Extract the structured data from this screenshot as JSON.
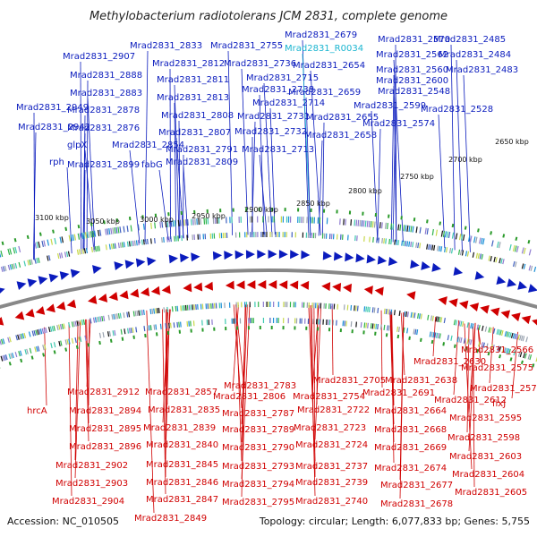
{
  "title": "Methylobacterium radiotolerans JCM 2831, complete genome",
  "accession": "Accession: NC_010505",
  "summary": "Topology: circular; Length: 6,077,833 bp; Genes: 5,755",
  "colors": {
    "forward": "#0a1bbd",
    "reverse": "#d00000",
    "rna": "#1ab5d0",
    "backbone": "#888888"
  },
  "ticks": [
    "3100 kbp",
    "3050 kbp",
    "3000 kbp",
    "2950 kbp",
    "2900 kbp",
    "2850 kbp",
    "2800 kbp",
    "2750 kbp",
    "2700 kbp",
    "2650 kbp"
  ],
  "top_labels": [
    "Mrad2831_2833",
    "Mrad2831_2755",
    "Mrad2831_2679",
    "Mrad2831_R0034",
    "Mrad2831_2570",
    "Mrad2831_2485",
    "Mrad2831_2907",
    "Mrad2831_2812",
    "Mrad2831_2736",
    "Mrad2831_2654",
    "Mrad2831_2562",
    "Mrad2831_2484",
    "Mrad2831_2888",
    "Mrad2831_2811",
    "Mrad2831_2715",
    "Mrad2831_2560",
    "Mrad2831_2483",
    "Mrad2831_2738",
    "Mrad2831_2600",
    "Mrad2831_2883",
    "Mrad2831_2813",
    "Mrad2831_2659",
    "Mrad2831_2548",
    "Mrad2831_2714",
    "Mrad2831_2949",
    "Mrad2831_2878",
    "Mrad2831_2599",
    "Mrad2831_2528",
    "Mrad2831_2808",
    "Mrad2831_2731",
    "Mrad2831_2655",
    "Mrad2831_2574",
    "Mrad2831_2942",
    "Mrad2831_2876",
    "Mrad2831_2807",
    "Mrad2831_2732",
    "Mrad2831_2658",
    "glpX",
    "Mrad2831_2854",
    "Mrad2831_2791",
    "Mrad2831_2713",
    "rph",
    "Mrad2831_2899",
    "fabG",
    "Mrad2831_2809"
  ],
  "bottom_labels": [
    "Mrad2831_2566",
    "Mrad2831_2630",
    "Mrad2831_2575",
    "Mrad2831_2783",
    "Mrad2831_2705",
    "Mrad2831_2638",
    "Mrad2831_2578",
    "Mrad2831_2912",
    "Mrad2831_2857",
    "Mrad2831_2806",
    "Mrad2831_2754",
    "Mrad2831_2691",
    "Mrad2831_2612",
    "hrcA",
    "Mrad2831_2835",
    "Mrad2831_2787",
    "Mrad2831_2722",
    "Mrad2831_2664",
    "fixJ",
    "Mrad2831_2595",
    "Mrad2831_2894",
    "Mrad2831_2839",
    "Mrad2831_2789",
    "Mrad2831_2723",
    "Mrad2831_2668",
    "Mrad2831_2598",
    "Mrad2831_2895",
    "Mrad2831_2840",
    "Mrad2831_2790",
    "Mrad2831_2724",
    "Mrad2831_2669",
    "Mrad2831_2603",
    "Mrad2831_2896",
    "Mrad2831_2845",
    "Mrad2831_2793",
    "Mrad2831_2737",
    "Mrad2831_2674",
    "Mrad2831_2604",
    "Mrad2831_2902",
    "Mrad2831_2846",
    "Mrad2831_2794",
    "Mrad2831_2739",
    "Mrad2831_2677",
    "Mrad2831_2605",
    "Mrad2831_2903",
    "Mrad2831_2847",
    "Mrad2831_2795",
    "Mrad2831_2740",
    "Mrad2831_2678",
    "Mrad2831_2904",
    "Mrad2831_2849"
  ]
}
